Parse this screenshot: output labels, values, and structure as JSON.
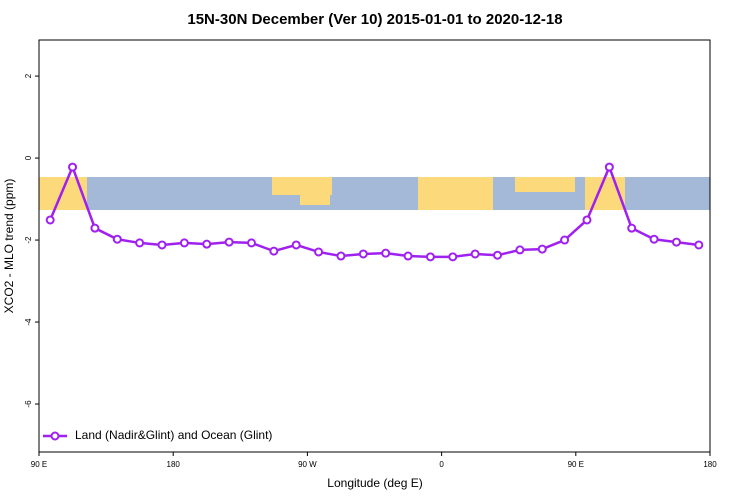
{
  "chart_data": {
    "type": "line",
    "title": "15N-30N December (Ver 10)   2015-01-01 to 2020-12-18",
    "x_label": "Longitude (deg E)",
    "y_label": "XCO2 - MLO trend (ppm)",
    "x": [
      97.5,
      112.5,
      127.5,
      142.5,
      157.5,
      172.5,
      187.5,
      202.5,
      217.5,
      232.5,
      247.5,
      262.5,
      277.5,
      292.5,
      307.5,
      322.5,
      337.5,
      352.5,
      367.5,
      382.5,
      397.5,
      412.5,
      427.5,
      442.5,
      457.5,
      472.5,
      487.5,
      502.5,
      517.5,
      532.5
    ],
    "series": [
      {
        "name": "Land (Nadir&Glint) and Ocean (Glint)",
        "color": "#a020f0",
        "values": [
          -1.51,
          -0.22,
          -1.71,
          -1.98,
          -2.07,
          -2.12,
          -2.07,
          -2.1,
          -2.05,
          -2.07,
          -2.27,
          -2.12,
          -2.29,
          -2.39,
          -2.34,
          -2.32,
          -2.39,
          -2.41,
          -2.41,
          -2.34,
          -2.37,
          -2.24,
          -2.22,
          -2.0,
          -1.51,
          -0.22,
          -1.71,
          -1.98,
          -2.05,
          -2.12
        ]
      }
    ],
    "xlim": [
      90,
      540
    ],
    "xticks": [
      {
        "value": 90,
        "label": "90 E"
      },
      180,
      {
        "value": 270,
        "label": "90 W"
      },
      {
        "value": 360,
        "label": "0"
      },
      {
        "value": 450,
        "label": "90 E"
      },
      {
        "value": 540,
        "label": "180"
      }
    ],
    "ylim": [
      -7.17,
      2.88
    ],
    "yticks": [
      2,
      0,
      -2,
      -4,
      -6
    ],
    "legend": "bottom-left"
  }
}
